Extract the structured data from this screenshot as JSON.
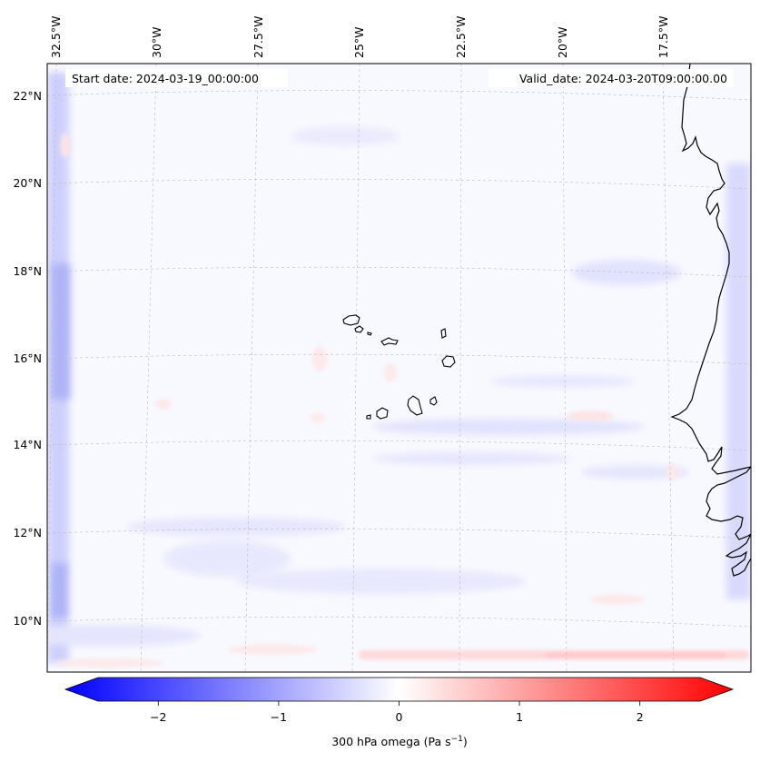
{
  "figure": {
    "start_date_label": "Start date: 2024-03-19_00:00:00",
    "valid_date_label": "Valid_date: 2024-03-20T09:00:00.00"
  },
  "map": {
    "projection": "conic (curved graticule)",
    "longitude_ticks": [
      "32.5°W",
      "30°W",
      "27.5°W",
      "25°W",
      "22.5°W",
      "20°W",
      "17.5°W"
    ],
    "latitude_ticks": [
      "22°N",
      "20°N",
      "18°N",
      "16°N",
      "14°N",
      "12°N",
      "10°N"
    ],
    "features": [
      "Cape Verde islands",
      "West African coastline"
    ]
  },
  "colorbar": {
    "variable_label": "300 hPa omega (Pa s",
    "variable_unit_exponent": "−1",
    "variable_label_close": ")",
    "tick_labels": [
      "−2",
      "−1",
      "0",
      "1",
      "2"
    ],
    "tick_values": [
      -2,
      -1,
      0,
      1,
      2
    ],
    "range": [
      -2.5,
      2.5
    ],
    "colormap": "bwr",
    "extend": "both",
    "low_color": "#0000ff",
    "mid_color": "#ffffff",
    "high_color": "#ff0000"
  },
  "colors": {
    "background_field": "#f8f8ff",
    "coastline": "#000000",
    "gridline": "#bbbbbb"
  }
}
